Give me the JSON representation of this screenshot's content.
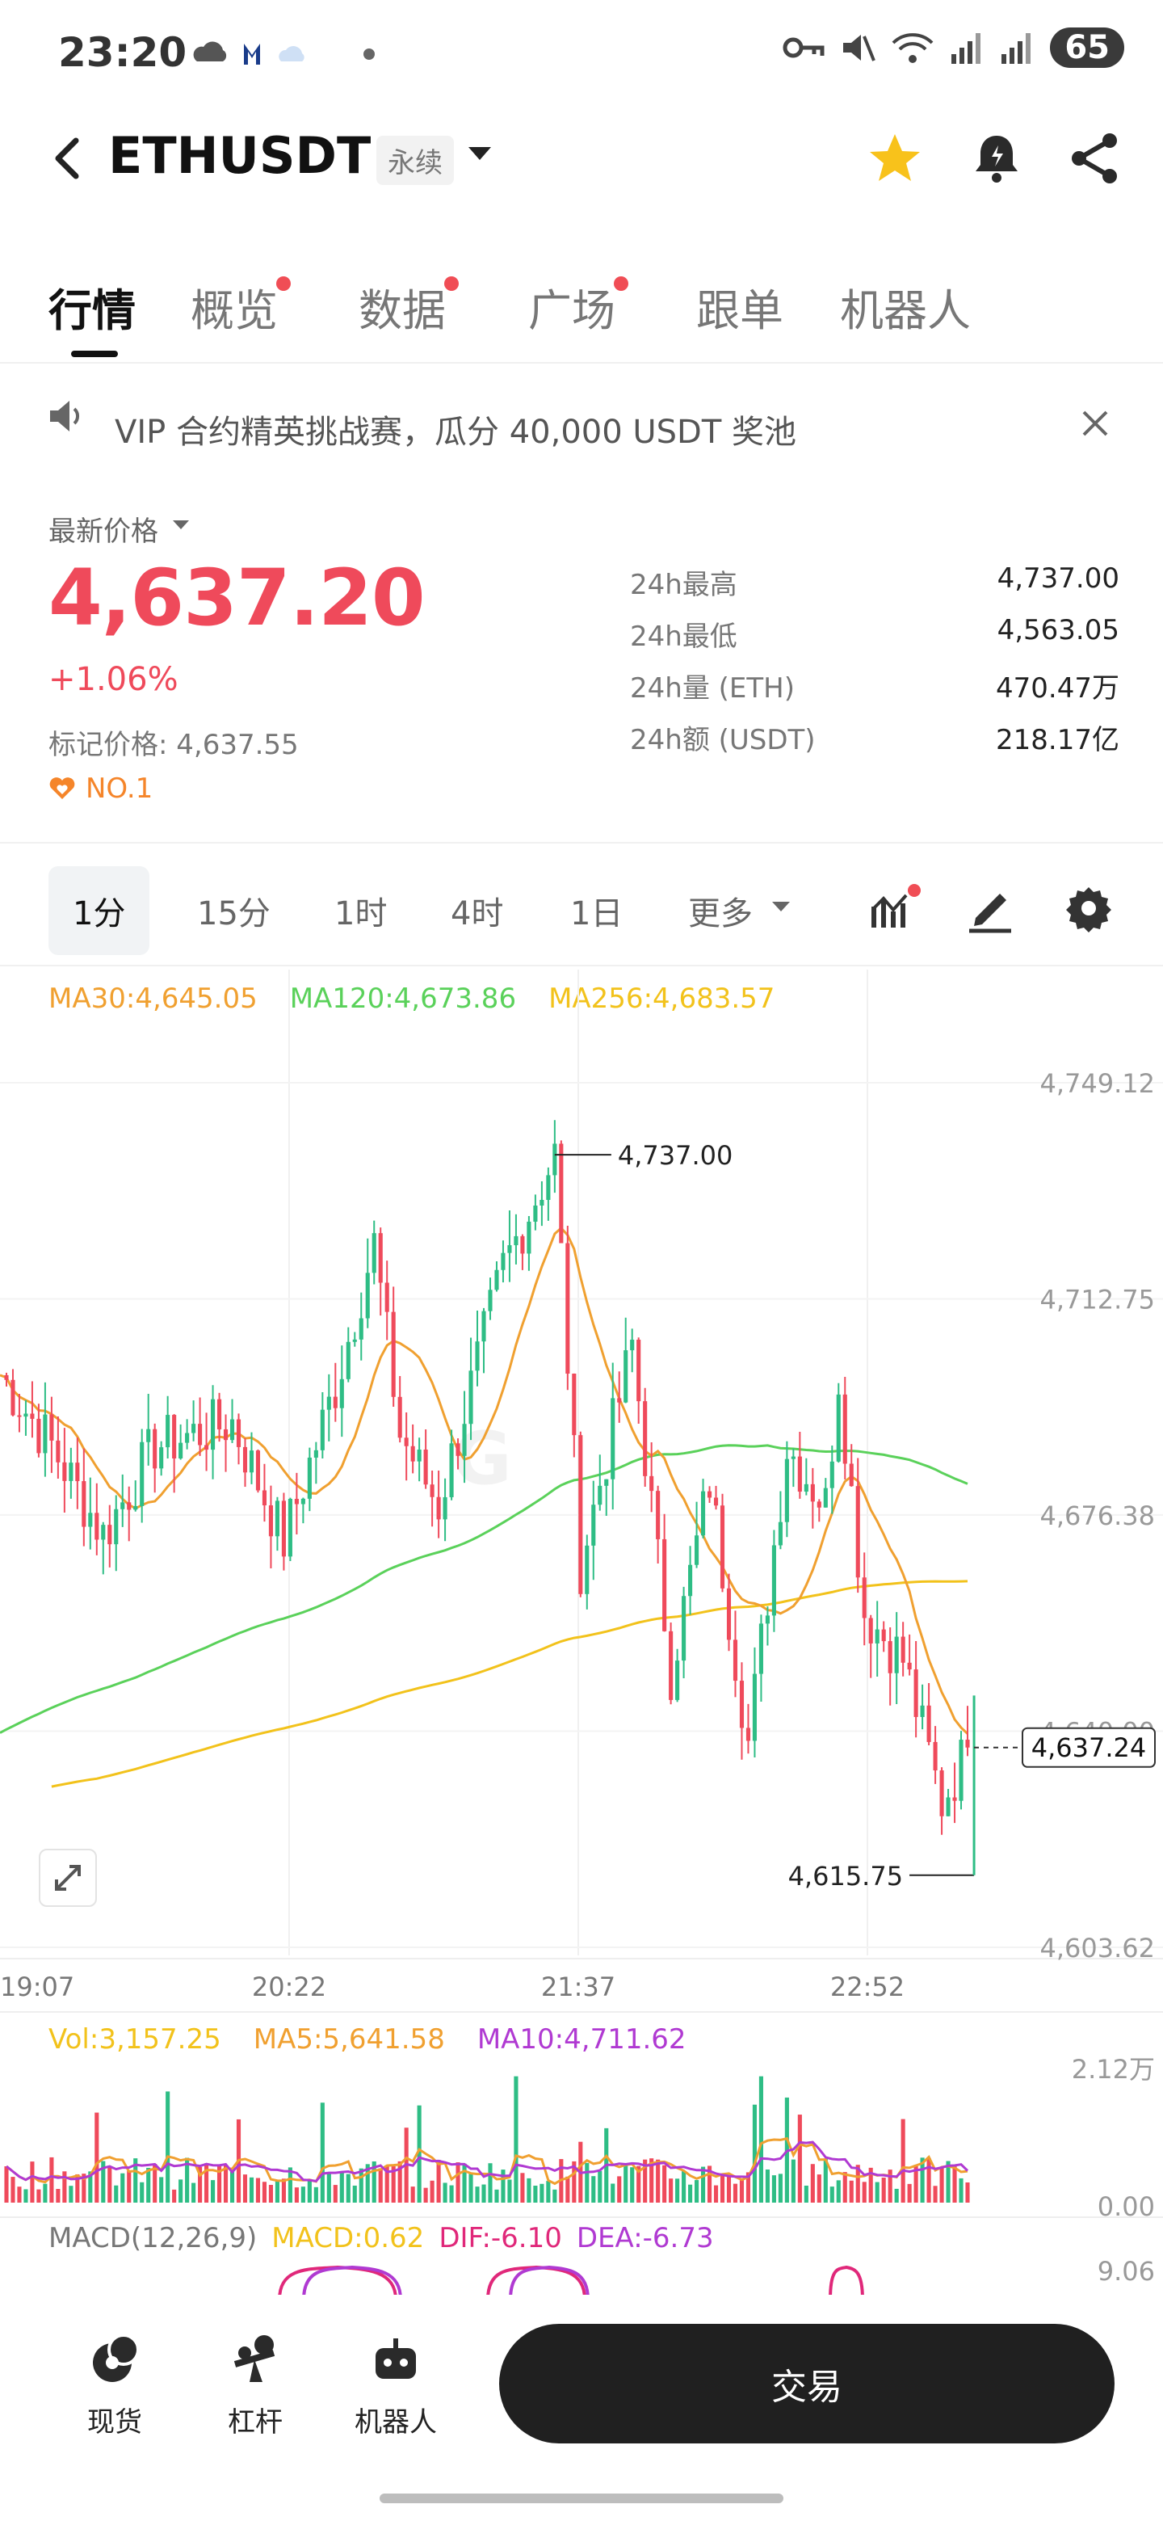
{
  "status_bar": {
    "time": "23:20",
    "battery": "65"
  },
  "header": {
    "symbol": "ETHUSDT",
    "contract_type": "永续"
  },
  "tabs": [
    {
      "label": "行情",
      "active": true,
      "dot": false
    },
    {
      "label": "概览",
      "active": false,
      "dot": true
    },
    {
      "label": "数据",
      "active": false,
      "dot": true
    },
    {
      "label": "广场",
      "active": false,
      "dot": true
    },
    {
      "label": "跟单",
      "active": false,
      "dot": false
    },
    {
      "label": "机器人",
      "active": false,
      "dot": false
    }
  ],
  "announcement": {
    "text": "VIP 合约精英挑战赛，瓜分 40,000 USDT 奖池"
  },
  "price": {
    "latest_label": "最新价格",
    "latest": "4,637.20",
    "change": "+1.06%",
    "mark_price": "标记价格: 4,637.55",
    "rank": "NO.1",
    "stats": [
      {
        "label": "24h最高",
        "value": "4,737.00"
      },
      {
        "label": "24h最低",
        "value": "4,563.05"
      },
      {
        "label": "24h量 (ETH)",
        "value": "470.47万"
      },
      {
        "label": "24h额 (USDT)",
        "value": "218.17亿"
      }
    ]
  },
  "intervals": [
    "1分",
    "15分",
    "1时",
    "4时",
    "1日",
    "更多"
  ],
  "colors": {
    "up": "#2ebd85",
    "down": "#ef4a5b",
    "ma30": "#f0a030",
    "ma120": "#5ad15a",
    "ma256": "#f2c21b",
    "vol_ma5": "#f0a030",
    "vol_ma10": "#b03ad2",
    "macd": "#f2c21b",
    "dif": "#e0287a",
    "dea": "#b03ad2"
  },
  "chart_data": [
    {
      "type": "candlestick",
      "legend": {
        "ma30": "MA30:4,645.05",
        "ma120": "MA120:4,673.86",
        "ma256": "MA256:4,683.57"
      },
      "y_axis_labels": [
        "4,749.12",
        "4,712.75",
        "4,676.38",
        "4,640.00",
        "4,603.62"
      ],
      "ylim": [
        4603.62,
        4749.12
      ],
      "x_axis_labels": [
        "19:07",
        "20:22",
        "21:37",
        "22:52"
      ],
      "high_marker": "4,737.00",
      "low_marker": "4,615.75",
      "current_price": "4,637.24",
      "candles_summary": {
        "count": 150,
        "first_close": 4700,
        "high": 4737.0,
        "low": 4615.75,
        "last_close": 4637.24
      },
      "waypoints": [
        [
          0,
          4700
        ],
        [
          8,
          4688
        ],
        [
          16,
          4673
        ],
        [
          24,
          4688
        ],
        [
          36,
          4692
        ],
        [
          44,
          4672
        ],
        [
          52,
          4698
        ],
        [
          58,
          4722
        ],
        [
          62,
          4690
        ],
        [
          68,
          4678
        ],
        [
          78,
          4718
        ],
        [
          86,
          4737
        ],
        [
          90,
          4668
        ],
        [
          98,
          4705
        ],
        [
          104,
          4650
        ],
        [
          110,
          4682
        ],
        [
          116,
          4638
        ],
        [
          122,
          4688
        ],
        [
          128,
          4678
        ],
        [
          130,
          4700
        ],
        [
          134,
          4660
        ],
        [
          140,
          4652
        ],
        [
          146,
          4628
        ],
        [
          150,
          4637
        ]
      ]
    },
    {
      "type": "bar",
      "legend": {
        "vol": "Vol:3,157.25",
        "ma5": "MA5:5,641.58",
        "ma10": "MA10:4,711.62"
      },
      "y_axis_labels": [
        "2.12万",
        "0.00"
      ],
      "ylim": [
        0,
        21200
      ]
    },
    {
      "type": "line",
      "legend": {
        "title": "MACD(12,26,9)",
        "macd": "MACD:0.62",
        "dif": "DIF:-6.10",
        "dea": "DEA:-6.73"
      },
      "y_axis_labels": [
        "9.06"
      ]
    }
  ],
  "bottom_nav": [
    {
      "label": "现货",
      "icon": "spot-icon"
    },
    {
      "label": "杠杆",
      "icon": "margin-icon"
    },
    {
      "label": "机器人",
      "icon": "robot-icon"
    }
  ],
  "trade_button": "交易"
}
